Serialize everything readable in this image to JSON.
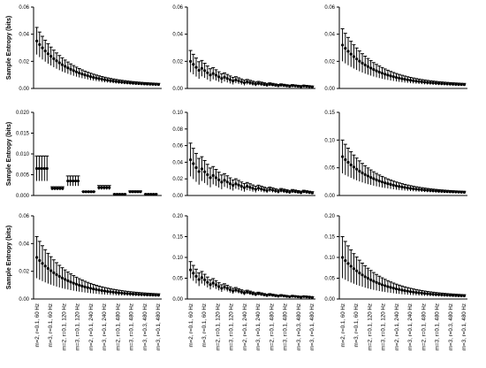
{
  "figure": {
    "ylabel": "Sample Entropy (bits)",
    "xticklabels": [
      "m=2, r=0.1, 60 Hz",
      "m=3, r=0.1, 60 Hz",
      "m=2, r=0.1, 120 Hz",
      "m=3, r=0.1, 120 Hz",
      "m=2, r=0.1, 240 Hz",
      "m=3, r=0.1, 240 Hz",
      "m=2, r=0.1, 480 Hz",
      "m=3, r=0.1, 480 Hz",
      "m=3, r=0.3, 480 Hz",
      "m=3, r=0.1, 480 Hz"
    ]
  },
  "chart_data": [
    {
      "type": "scatter",
      "title": "",
      "ylabel": "Sample Entropy (bits)",
      "ylim": [
        0,
        0.06
      ],
      "yticks": [
        "0.00",
        "0.02",
        "0.04",
        "0.06"
      ],
      "grid": false,
      "series": [
        {
          "shape": "decay",
          "start": 0.035,
          "end": 0.002,
          "err_start": 0.01,
          "err_end": 0.0006
        }
      ]
    },
    {
      "type": "scatter",
      "title": "",
      "ylabel": "",
      "ylim": [
        0,
        0.06
      ],
      "yticks": [
        "0.00",
        "0.02",
        "0.04",
        "0.06"
      ],
      "grid": false,
      "series": [
        {
          "shape": "groups",
          "start": 0.02,
          "end": 0.001,
          "err_start": 0.008,
          "err_end": 0.0004
        }
      ]
    },
    {
      "type": "scatter",
      "title": "",
      "ylabel": "",
      "ylim": [
        0,
        0.06
      ],
      "yticks": [
        "0.00",
        "0.02",
        "0.04",
        "0.06"
      ],
      "grid": false,
      "series": [
        {
          "shape": "decay",
          "start": 0.032,
          "end": 0.002,
          "err_start": 0.012,
          "err_end": 0.0006
        }
      ]
    },
    {
      "type": "scatter",
      "title": "",
      "ylabel": "Sample Entropy (bits)",
      "ylim": [
        0,
        0.02
      ],
      "yticks": [
        "0.000",
        "0.005",
        "0.010",
        "0.015",
        "0.020"
      ],
      "grid": false,
      "series": [
        {
          "shape": "steps",
          "levels": [
            0.0065,
            0.0017,
            0.0035,
            0.0009,
            0.0019,
            0.0003,
            0.0009,
            0.0003
          ],
          "errs": [
            0.003,
            0.0004,
            0.0012,
            0.0001,
            0.0005,
            0.0001,
            0.0002,
            0.0001
          ]
        }
      ]
    },
    {
      "type": "scatter",
      "title": "",
      "ylabel": "",
      "ylim": [
        0,
        0.1
      ],
      "yticks": [
        "0.00",
        "0.02",
        "0.04",
        "0.06",
        "0.08",
        "0.10"
      ],
      "grid": false,
      "series": [
        {
          "shape": "groups",
          "start": 0.043,
          "end": 0.003,
          "err_start": 0.02,
          "err_end": 0.001
        }
      ]
    },
    {
      "type": "scatter",
      "title": "",
      "ylabel": "",
      "ylim": [
        0,
        0.15
      ],
      "yticks": [
        "0.00",
        "0.05",
        "0.10",
        "0.15"
      ],
      "grid": false,
      "series": [
        {
          "shape": "decay",
          "start": 0.07,
          "end": 0.004,
          "err_start": 0.03,
          "err_end": 0.001
        }
      ]
    },
    {
      "type": "scatter",
      "title": "",
      "ylabel": "Sample Entropy (bits)",
      "ylim": [
        0,
        0.06
      ],
      "yticks": [
        "0.00",
        "0.02",
        "0.04",
        "0.06"
      ],
      "grid": false,
      "series": [
        {
          "shape": "decay",
          "start": 0.03,
          "end": 0.002,
          "err_start": 0.015,
          "err_end": 0.0006
        }
      ]
    },
    {
      "type": "scatter",
      "title": "",
      "ylabel": "",
      "ylim": [
        0,
        0.2
      ],
      "yticks": [
        "0.00",
        "0.05",
        "0.10",
        "0.15",
        "0.20"
      ],
      "grid": false,
      "series": [
        {
          "shape": "groups",
          "start": 0.07,
          "end": 0.003,
          "err_start": 0.02,
          "err_end": 0.001
        }
      ]
    },
    {
      "type": "scatter",
      "title": "",
      "ylabel": "",
      "ylim": [
        0,
        0.2
      ],
      "yticks": [
        "0.00",
        "0.05",
        "0.10",
        "0.15",
        "0.20"
      ],
      "grid": false,
      "series": [
        {
          "shape": "decay",
          "start": 0.1,
          "end": 0.005,
          "err_start": 0.05,
          "err_end": 0.0015
        }
      ]
    }
  ]
}
